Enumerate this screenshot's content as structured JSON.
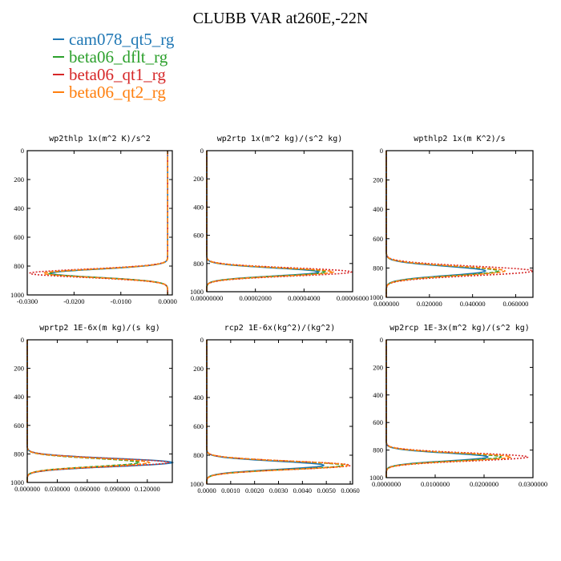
{
  "title": "CLUBB VAR at260E,-22N",
  "legend": [
    {
      "name": "cam078_qt5_rg",
      "color": "#1f77b4"
    },
    {
      "name": "beta06_dflt_rg",
      "color": "#2ca02c"
    },
    {
      "name": "beta06_qt1_rg",
      "color": "#d62728"
    },
    {
      "name": "beta06_qt2_rg",
      "color": "#ff7f0e"
    }
  ],
  "chart_data": [
    {
      "type": "line",
      "title": "wp2thlp  1x(m^2 K)/s^2",
      "xlim": [
        -0.03,
        0.001
      ],
      "xticks": [
        -0.03,
        -0.02,
        -0.01,
        0.0
      ],
      "xtick_labels": [
        "-0.0300",
        "-0.0200",
        "-0.0100",
        "0.0000"
      ],
      "ylim": [
        1000,
        0
      ],
      "yticks": [
        0,
        200,
        400,
        600,
        800,
        1000
      ],
      "peak_level": 850,
      "series": [
        {
          "name": "cam078_qt5_rg",
          "peak": -0.025,
          "surface": 0.0
        },
        {
          "name": "beta06_dflt_rg",
          "peak": -0.0255,
          "surface": 0.0
        },
        {
          "name": "beta06_qt1_rg",
          "peak": -0.0295,
          "surface": 0.0
        },
        {
          "name": "beta06_qt2_rg",
          "peak": -0.0265,
          "surface": 0.0
        }
      ]
    },
    {
      "type": "line",
      "title": "wp2rtp  1x(m^2 kg)/(s^2 kg)",
      "xlim": [
        0,
        6e-05
      ],
      "xticks": [
        0,
        2e-05,
        4e-05,
        6e-05
      ],
      "xtick_labels": [
        "0.00000000",
        "0.00002000",
        "0.00004000",
        "0.00006000"
      ],
      "ylim": [
        1000,
        0
      ],
      "yticks": [
        0,
        200,
        400,
        600,
        800,
        1000
      ],
      "peak_level": 860,
      "series": [
        {
          "name": "cam078_qt5_rg",
          "peak": 4.6e-05,
          "surface": 0.0
        },
        {
          "name": "beta06_dflt_rg",
          "peak": 4.9e-05,
          "surface": 0.0
        },
        {
          "name": "beta06_qt1_rg",
          "peak": 5.95e-05,
          "surface": 0.0
        },
        {
          "name": "beta06_qt2_rg",
          "peak": 5.2e-05,
          "surface": 0.0
        }
      ]
    },
    {
      "type": "line",
      "title": "wpthlp2  1x(m K^2)/s",
      "xlim": [
        0,
        0.068
      ],
      "xticks": [
        0,
        0.02,
        0.04,
        0.06
      ],
      "xtick_labels": [
        "0.000000",
        "0.020000",
        "0.040000",
        "0.060000"
      ],
      "ylim": [
        1000,
        0
      ],
      "yticks": [
        0,
        200,
        400,
        600,
        800,
        1000
      ],
      "peak_level": 820,
      "series": [
        {
          "name": "cam078_qt5_rg",
          "peak": 0.046,
          "surface": 0.0
        },
        {
          "name": "beta06_dflt_rg",
          "peak": 0.052,
          "surface": 0.0
        },
        {
          "name": "beta06_qt1_rg",
          "peak": 0.068,
          "surface": 0.0
        },
        {
          "name": "beta06_qt2_rg",
          "peak": 0.055,
          "surface": 0.0
        }
      ]
    },
    {
      "type": "line",
      "title": "wprtp2  1E-6x(m kg)/(s kg)",
      "xlim": [
        0,
        0.145
      ],
      "xticks": [
        0,
        0.03,
        0.06,
        0.09,
        0.12
      ],
      "xtick_labels": [
        "0.000000",
        "0.030000",
        "0.060000",
        "0.090000",
        "0.120000"
      ],
      "ylim": [
        1000,
        0
      ],
      "yticks": [
        0,
        200,
        400,
        600,
        800,
        1000
      ],
      "peak_level": 860,
      "series": [
        {
          "name": "cam078_qt5_rg",
          "peak": 0.145,
          "surface": 0.0
        },
        {
          "name": "beta06_dflt_rg",
          "peak": 0.112,
          "surface": 0.0
        },
        {
          "name": "beta06_qt1_rg",
          "peak": 0.141,
          "surface": 0.0
        },
        {
          "name": "beta06_qt2_rg",
          "peak": 0.122,
          "surface": 0.0
        }
      ]
    },
    {
      "type": "line",
      "title": "rcp2  1E-6x(kg^2)/(kg^2)",
      "xlim": [
        0,
        0.0061
      ],
      "xticks": [
        0,
        0.001,
        0.002,
        0.003,
        0.004,
        0.005,
        0.006
      ],
      "xtick_labels": [
        "0.0000",
        "0.0010",
        "0.0020",
        "0.0030",
        "0.0040",
        "0.0050",
        "0.0060"
      ],
      "ylim": [
        1000,
        0
      ],
      "yticks": [
        0,
        200,
        400,
        600,
        800,
        1000
      ],
      "peak_level": 870,
      "series": [
        {
          "name": "cam078_qt5_rg",
          "peak": 0.0049,
          "surface": 0.0
        },
        {
          "name": "beta06_dflt_rg",
          "peak": 0.0057,
          "surface": 0.0
        },
        {
          "name": "beta06_qt1_rg",
          "peak": 0.006,
          "surface": 0.0
        },
        {
          "name": "beta06_qt2_rg",
          "peak": 0.0059,
          "surface": 0.0
        }
      ]
    },
    {
      "type": "line",
      "title": "wp2rcp  1E-3x(m^2 kg)/(s^2 kg)",
      "xlim": [
        0,
        0.03
      ],
      "xticks": [
        0,
        0.01,
        0.02,
        0.03
      ],
      "xtick_labels": [
        "0.0000000",
        "0.0100000",
        "0.0200000",
        "0.0300000"
      ],
      "ylim": [
        1000,
        0
      ],
      "yticks": [
        0,
        200,
        400,
        600,
        800,
        1000
      ],
      "peak_level": 850,
      "series": [
        {
          "name": "cam078_qt5_rg",
          "peak": 0.0208,
          "surface": 0.0
        },
        {
          "name": "beta06_dflt_rg",
          "peak": 0.0235,
          "surface": 0.0
        },
        {
          "name": "beta06_qt1_rg",
          "peak": 0.029,
          "surface": 0.0
        },
        {
          "name": "beta06_qt2_rg",
          "peak": 0.0255,
          "surface": 0.0
        }
      ]
    }
  ]
}
